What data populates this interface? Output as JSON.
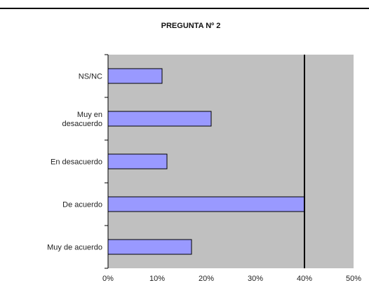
{
  "chart_data": {
    "type": "bar",
    "orientation": "horizontal",
    "title": "PREGUNTA Nº 2",
    "xlabel": "",
    "ylabel": "",
    "categories": [
      "NS/NC",
      "Muy en desacuerdo",
      "En desacuerdo",
      "De acuerdo",
      "Muy de acuerdo"
    ],
    "category_lines": [
      [
        "NS/NC"
      ],
      [
        "Muy en",
        "desacuerdo"
      ],
      [
        "En desacuerdo"
      ],
      [
        "De acuerdo"
      ],
      [
        "Muy de acuerdo"
      ]
    ],
    "values": [
      0.11,
      0.21,
      0.12,
      0.4,
      0.17
    ],
    "xlim": [
      0,
      0.5
    ],
    "xticks": [
      "0%",
      "10%",
      "20%",
      "30%",
      "40%",
      "50%"
    ],
    "grid": false,
    "legend": "none",
    "bar_color": "#9999ff",
    "plot_background": "#c0c0c0",
    "reference_line_value": 0.4
  }
}
